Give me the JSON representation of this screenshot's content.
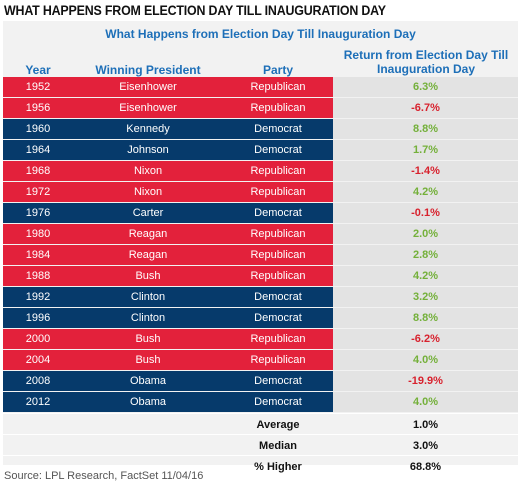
{
  "page_title": "WHAT HAPPENS FROM ELECTION DAY TILL INAUGURATION DAY",
  "source": "Source: LPL Research, FactSet   11/04/16",
  "chart_data": {
    "type": "table",
    "title": "What Happens from Election Day Till Inauguration Day",
    "columns": [
      "Year",
      "Winning President",
      "Party",
      "Return from Election Day Till Inauguration Day"
    ],
    "rows": [
      {
        "year": "1952",
        "president": "Eisenhower",
        "party": "Republican",
        "return": "6.3%"
      },
      {
        "year": "1956",
        "president": "Eisenhower",
        "party": "Republican",
        "return": "-6.7%"
      },
      {
        "year": "1960",
        "president": "Kennedy",
        "party": "Democrat",
        "return": "8.8%"
      },
      {
        "year": "1964",
        "president": "Johnson",
        "party": "Democrat",
        "return": "1.7%"
      },
      {
        "year": "1968",
        "president": "Nixon",
        "party": "Republican",
        "return": "-1.4%"
      },
      {
        "year": "1972",
        "president": "Nixon",
        "party": "Republican",
        "return": "4.2%"
      },
      {
        "year": "1976",
        "president": "Carter",
        "party": "Democrat",
        "return": "-0.1%"
      },
      {
        "year": "1980",
        "president": "Reagan",
        "party": "Republican",
        "return": "2.0%"
      },
      {
        "year": "1984",
        "president": "Reagan",
        "party": "Republican",
        "return": "2.8%"
      },
      {
        "year": "1988",
        "president": "Bush",
        "party": "Republican",
        "return": "4.2%"
      },
      {
        "year": "1992",
        "president": "Clinton",
        "party": "Democrat",
        "return": "3.2%"
      },
      {
        "year": "1996",
        "president": "Clinton",
        "party": "Democrat",
        "return": "8.8%"
      },
      {
        "year": "2000",
        "president": "Bush",
        "party": "Republican",
        "return": "-6.2%"
      },
      {
        "year": "2004",
        "president": "Bush",
        "party": "Republican",
        "return": "4.0%"
      },
      {
        "year": "2008",
        "president": "Obama",
        "party": "Democrat",
        "return": "-19.9%"
      },
      {
        "year": "2012",
        "president": "Obama",
        "party": "Democrat",
        "return": "4.0%"
      }
    ],
    "summary": [
      {
        "label": "Average",
        "value": "1.0%"
      },
      {
        "label": "Median",
        "value": "3.0%"
      },
      {
        "label": "% Higher",
        "value": "68.8%"
      }
    ],
    "colors": {
      "republican": "#e3213b",
      "democrat": "#063a6b",
      "positive": "#74b03a",
      "negative": "#d8222e",
      "header": "#1d6fb8"
    }
  }
}
